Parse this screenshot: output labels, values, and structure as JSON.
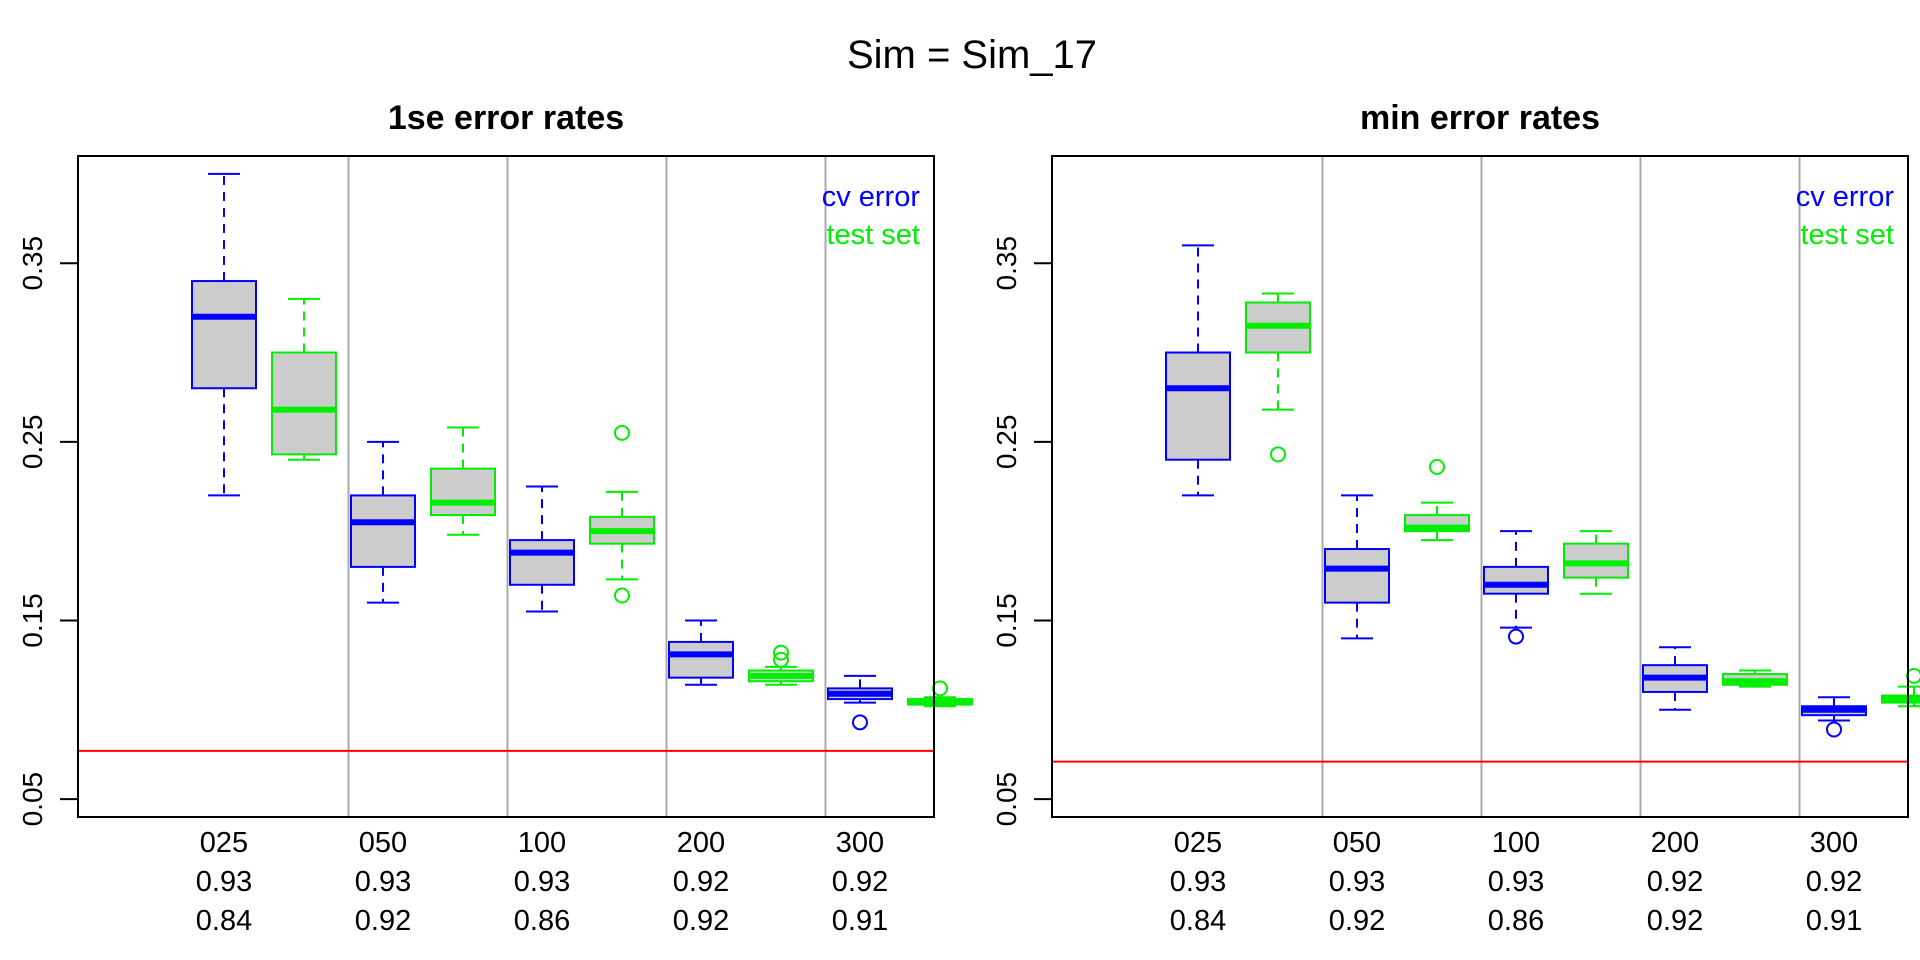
{
  "suptitle": "Sim = Sim_17",
  "colors": {
    "cv": "#0000ff",
    "test": "#00ee00",
    "reference": "#ff0000",
    "box_fill": "#cccccc",
    "separator": "#aaaaaa"
  },
  "chart_data": [
    {
      "type": "boxplot",
      "title": "1se error rates",
      "ylim": [
        0.04,
        0.41
      ],
      "yticks": [
        0.05,
        0.15,
        0.25,
        0.35
      ],
      "ytick_labels": [
        "0.05",
        "0.15",
        "0.25",
        "0.35"
      ],
      "legend": {
        "placement": "top-right",
        "entries": [
          "cv error",
          "test set"
        ]
      },
      "reference_line": 0.077,
      "groups": [
        {
          "label": "025",
          "row2": "0.93",
          "row3": "0.84",
          "cv": {
            "min": 0.22,
            "q1": 0.28,
            "median": 0.32,
            "q3": 0.34,
            "max": 0.4,
            "outliers": []
          },
          "test": {
            "min": 0.24,
            "q1": 0.243,
            "median": 0.268,
            "q3": 0.3,
            "max": 0.33,
            "outliers": []
          }
        },
        {
          "label": "050",
          "row2": "0.93",
          "row3": "0.92",
          "cv": {
            "min": 0.16,
            "q1": 0.18,
            "median": 0.205,
            "q3": 0.22,
            "max": 0.25,
            "outliers": []
          },
          "test": {
            "min": 0.198,
            "q1": 0.209,
            "median": 0.216,
            "q3": 0.235,
            "max": 0.258,
            "outliers": []
          }
        },
        {
          "label": "100",
          "row2": "0.93",
          "row3": "0.86",
          "cv": {
            "min": 0.155,
            "q1": 0.17,
            "median": 0.188,
            "q3": 0.195,
            "max": 0.225,
            "outliers": []
          },
          "test": {
            "min": 0.173,
            "q1": 0.193,
            "median": 0.2,
            "q3": 0.208,
            "max": 0.222,
            "outliers": [
              0.255,
              0.164
            ]
          }
        },
        {
          "label": "200",
          "row2": "0.92",
          "row3": "0.92",
          "cv": {
            "min": 0.114,
            "q1": 0.118,
            "median": 0.131,
            "q3": 0.138,
            "max": 0.15,
            "outliers": []
          },
          "test": {
            "min": 0.114,
            "q1": 0.116,
            "median": 0.119,
            "q3": 0.122,
            "max": 0.124,
            "outliers": [
              0.132,
              0.128
            ]
          }
        },
        {
          "label": "300",
          "row2": "0.92",
          "row3": "0.91",
          "cv": {
            "min": 0.104,
            "q1": 0.106,
            "median": 0.109,
            "q3": 0.112,
            "max": 0.119,
            "outliers": [
              0.093
            ]
          },
          "test": {
            "min": 0.102,
            "q1": 0.103,
            "median": 0.104,
            "q3": 0.106,
            "max": 0.107,
            "outliers": [
              0.112
            ]
          }
        }
      ]
    },
    {
      "type": "boxplot",
      "title": "min error rates",
      "ylim": [
        0.04,
        0.41
      ],
      "yticks": [
        0.05,
        0.15,
        0.25,
        0.35
      ],
      "ytick_labels": [
        "0.05",
        "0.15",
        "0.25",
        "0.35"
      ],
      "legend": {
        "placement": "top-right",
        "entries": [
          "cv error",
          "test set"
        ]
      },
      "reference_line": 0.071,
      "groups": [
        {
          "label": "025",
          "row2": "0.93",
          "row3": "0.84",
          "cv": {
            "min": 0.22,
            "q1": 0.24,
            "median": 0.28,
            "q3": 0.3,
            "max": 0.36,
            "outliers": []
          },
          "test": {
            "min": 0.268,
            "q1": 0.3,
            "median": 0.315,
            "q3": 0.328,
            "max": 0.333,
            "outliers": [
              0.243
            ]
          }
        },
        {
          "label": "050",
          "row2": "0.93",
          "row3": "0.92",
          "cv": {
            "min": 0.14,
            "q1": 0.16,
            "median": 0.179,
            "q3": 0.19,
            "max": 0.22,
            "outliers": []
          },
          "test": {
            "min": 0.195,
            "q1": 0.2,
            "median": 0.202,
            "q3": 0.209,
            "max": 0.216,
            "outliers": [
              0.236
            ]
          }
        },
        {
          "label": "100",
          "row2": "0.93",
          "row3": "0.86",
          "cv": {
            "min": 0.146,
            "q1": 0.165,
            "median": 0.17,
            "q3": 0.18,
            "max": 0.2,
            "outliers": [
              0.141
            ]
          },
          "test": {
            "min": 0.165,
            "q1": 0.174,
            "median": 0.182,
            "q3": 0.193,
            "max": 0.2,
            "outliers": []
          }
        },
        {
          "label": "200",
          "row2": "0.92",
          "row3": "0.92",
          "cv": {
            "min": 0.1,
            "q1": 0.11,
            "median": 0.118,
            "q3": 0.125,
            "max": 0.135,
            "outliers": []
          },
          "test": {
            "min": 0.113,
            "q1": 0.114,
            "median": 0.116,
            "q3": 0.12,
            "max": 0.122,
            "outliers": []
          }
        },
        {
          "label": "300",
          "row2": "0.92",
          "row3": "0.91",
          "cv": {
            "min": 0.094,
            "q1": 0.097,
            "median": 0.1,
            "q3": 0.102,
            "max": 0.107,
            "outliers": [
              0.089
            ]
          },
          "test": {
            "min": 0.102,
            "q1": 0.104,
            "median": 0.106,
            "q3": 0.108,
            "max": 0.113,
            "outliers": [
              0.119
            ]
          }
        }
      ]
    }
  ]
}
